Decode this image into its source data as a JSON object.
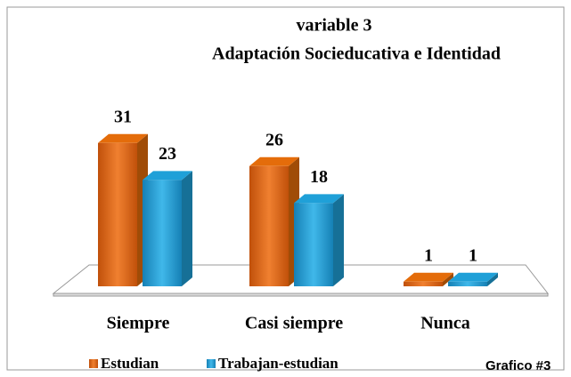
{
  "chart_data": {
    "type": "bar3d",
    "title": "variable 3",
    "subtitle": "Adaptación Socieducativa e Identidad",
    "annotation": "Grafico #3",
    "categories": [
      "Siempre",
      "Casi siempre",
      "Nunca"
    ],
    "series": [
      {
        "name": "Estudian",
        "color": "#e46c0a",
        "values": [
          31,
          26,
          1
        ]
      },
      {
        "name": "Trabajan-estudian",
        "color": "#1fa0d8",
        "values": [
          23,
          18,
          1
        ]
      }
    ]
  }
}
